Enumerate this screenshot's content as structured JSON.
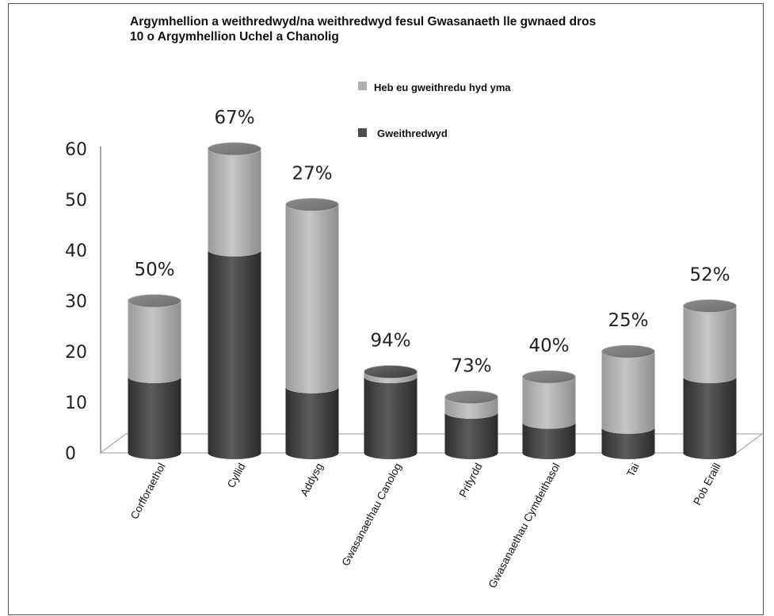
{
  "chart_data": {
    "type": "bar",
    "stacked": true,
    "title_lines": [
      "Argymhellion a weithredwyd/na weithredwyd fesul Gwasanaeth lle gwnaed dros",
      "10 o Argymhellion Uchel a Chanolig"
    ],
    "categories": [
      "Corfforaethol",
      "Cyllid",
      "Addysg",
      "Gwasanaethau Canolog",
      "Prifyrdd",
      "Gwasanaethau Cymdeithasol",
      "Tai",
      "Pob Eraill"
    ],
    "series": [
      {
        "name": "Gweithredwyd",
        "color": "#4d4d4d",
        "values": [
          15,
          40,
          13,
          15,
          8,
          6,
          5,
          15
        ]
      },
      {
        "name": "Heb eu gweithredu hyd yma",
        "color": "#b0b0b0",
        "values": [
          15,
          20,
          36,
          1,
          3,
          9,
          15,
          14
        ]
      }
    ],
    "data_labels": [
      "50%",
      "67%",
      "27%",
      "94%",
      "73%",
      "40%",
      "25%",
      "52%"
    ],
    "yticks": [
      "0",
      "10",
      "20",
      "30",
      "40",
      "50",
      "60"
    ],
    "ylim": [
      0,
      60
    ],
    "legend_order": [
      "Heb eu gweithredu hyd yma",
      "Gweithredwyd"
    ],
    "legend_position": "top-right",
    "grid": false
  }
}
